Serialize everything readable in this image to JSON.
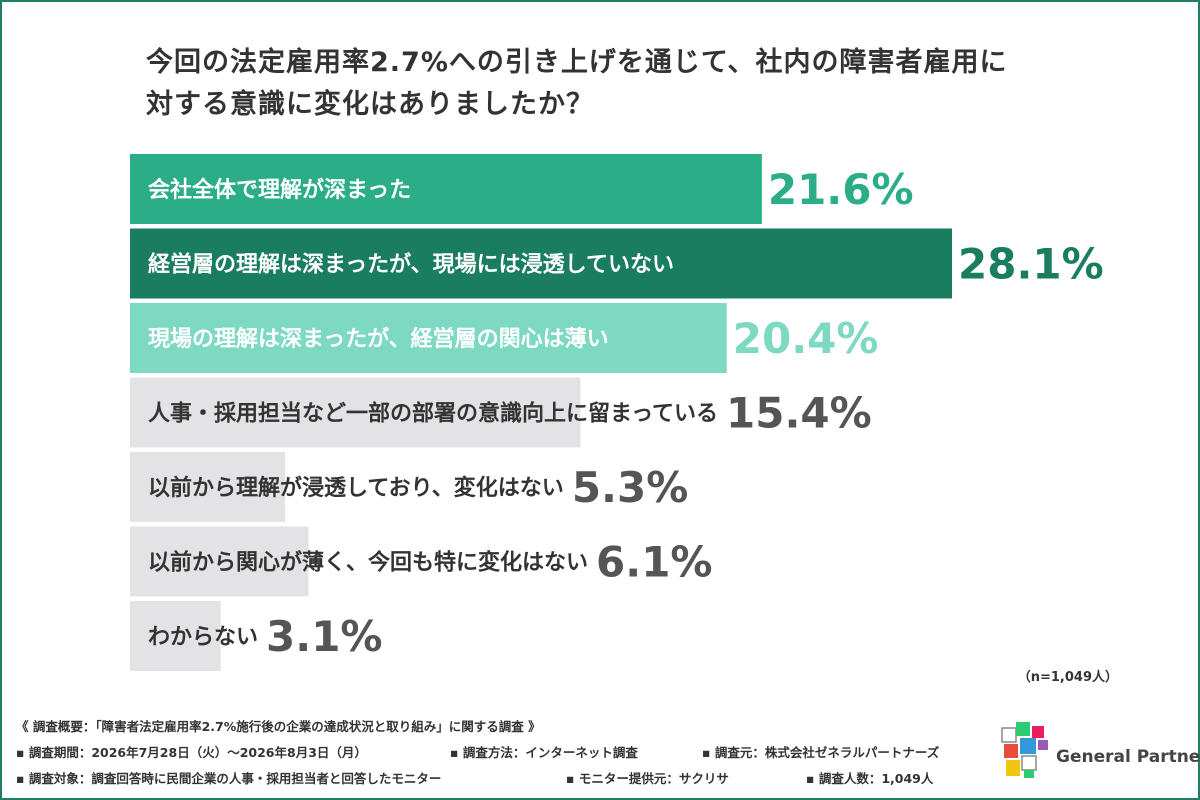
{
  "title_line1": "今回の法定雇用率2.7%への引き上げを通じて、社内の障害者雇用に",
  "title_line2": "対する意識に変化はありましたか？",
  "chart_data": {
    "type": "bar",
    "orientation": "horizontal",
    "xlim": [
      0,
      28.1
    ],
    "categories": [
      "会社全体で理解が深まった",
      "経営層の理解は深まったが、現場には浸透していない",
      "現場の理解は深まったが、経営層の関心は薄い",
      "人事・採用担当など一部の部署の意識向上に留まっている",
      "以前から理解が浸透しており、変化はない",
      "以前から関心が薄く、今回も特に変化はない",
      "わからない"
    ],
    "values": [
      21.6,
      28.1,
      20.4,
      15.4,
      5.3,
      6.1,
      3.1
    ],
    "value_labels": [
      "21.6%",
      "28.1%",
      "20.4%",
      "15.4%",
      "5.3%",
      "6.1%",
      "3.1%"
    ],
    "bar_colors": [
      "#2bae87",
      "#1a7d5f",
      "#7dd9c2",
      "#e3e3e5",
      "#e3e3e5",
      "#e3e3e5",
      "#e3e3e5"
    ],
    "label_colors": [
      "#ffffff",
      "#ffffff",
      "#ffffff",
      "#333333",
      "#333333",
      "#333333",
      "#333333"
    ],
    "value_colors": [
      "#2bae87",
      "#1a7d5f",
      "#7dd9c2",
      "#555555",
      "#555555",
      "#555555",
      "#555555"
    ],
    "grid": false,
    "legend": "none"
  },
  "sample_note": "（n=1,049人）",
  "footer": {
    "line1": "《 調査概要：「障害者法定雇用率2.7%施行後の企業の達成状況と取り組み」に関する調査 》",
    "period": "▪ 調査期間：2026年7月28日（火）〜2026年8月3日（月）",
    "method": "▪ 調査方法：インターネット調査",
    "source": "▪ 調査元：株式会社ゼネラルパートナーズ",
    "target": "▪ 調査対象：調査回答時に民間企業の人事・採用担当者と回答したモニター",
    "provider": "▪ モニター提供元：サクリサ",
    "count": "▪ 調査人数：1,049人"
  },
  "logo": {
    "text": "General Partners",
    "colors": [
      "#e74c3c",
      "#3498db",
      "#2ecc71",
      "#f1c40f",
      "#9b59b6",
      "#e91e63"
    ]
  }
}
